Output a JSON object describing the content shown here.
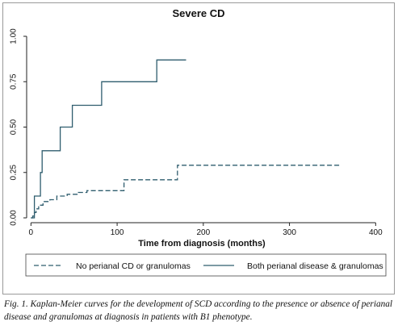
{
  "chart_data": {
    "type": "line",
    "title": "Severe CD",
    "xlabel": "Time from diagnosis (months)",
    "ylabel": "",
    "xlim": [
      -5,
      410
    ],
    "ylim": [
      0,
      1.0
    ],
    "x_ticks": [
      "0",
      "100",
      "200",
      "300",
      "400"
    ],
    "y_ticks": [
      "0.00",
      "0.25",
      "0.50",
      "0.75",
      "1.00"
    ],
    "step": true,
    "grid": false,
    "legend_position": "bottom",
    "series": [
      {
        "name": "No perianal CD or granulomas",
        "style": "dashed",
        "color": "#2f5d6e",
        "points": [
          [
            0,
            0.0
          ],
          [
            2,
            0.01
          ],
          [
            4,
            0.03
          ],
          [
            6,
            0.05
          ],
          [
            9,
            0.07
          ],
          [
            14,
            0.09
          ],
          [
            22,
            0.1
          ],
          [
            30,
            0.12
          ],
          [
            42,
            0.13
          ],
          [
            55,
            0.14
          ],
          [
            65,
            0.15
          ],
          [
            108,
            0.21
          ],
          [
            170,
            0.29
          ],
          [
            360,
            0.29
          ]
        ]
      },
      {
        "name": "Both perianal disease & granulomas",
        "style": "solid",
        "color": "#2f5d6e",
        "points": [
          [
            0,
            0.0
          ],
          [
            4,
            0.12
          ],
          [
            11,
            0.25
          ],
          [
            13,
            0.37
          ],
          [
            34,
            0.5
          ],
          [
            48,
            0.62
          ],
          [
            82,
            0.75
          ],
          [
            146,
            0.87
          ],
          [
            180,
            0.87
          ]
        ]
      }
    ]
  },
  "caption": "Fig. 1. Kaplan-Meier curves for the development of SCD according to the presence or absence of perianal disease and granulomas at diagnosis in patients with B1 phenotype."
}
